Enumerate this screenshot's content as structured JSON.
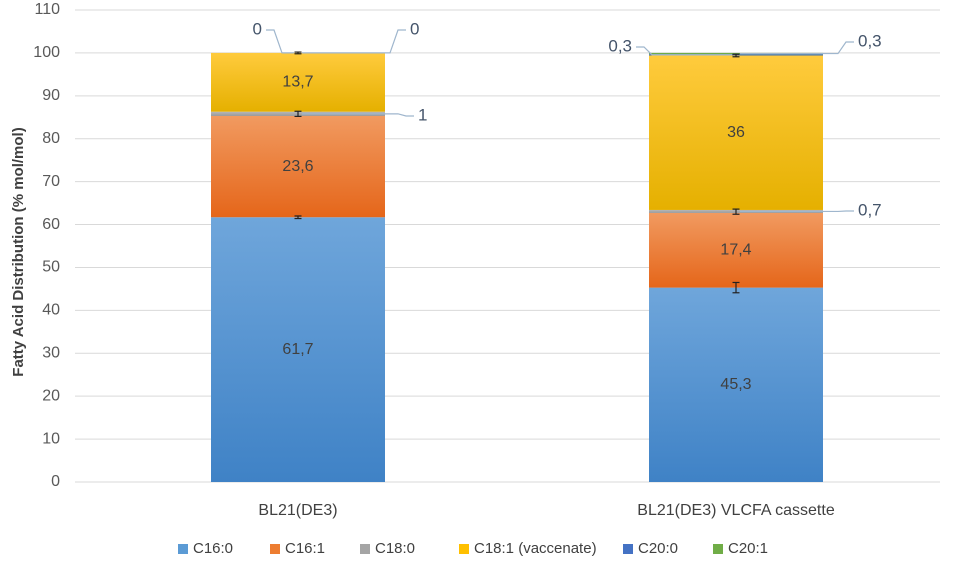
{
  "chart_data": {
    "type": "bar",
    "stacked": true,
    "ylabel": "Fatty Acid Distribution (% mol/mol)",
    "xlabel": "",
    "ylim": [
      0,
      110
    ],
    "yticks": [
      0,
      10,
      20,
      30,
      40,
      50,
      60,
      70,
      80,
      90,
      100,
      110
    ],
    "grid": true,
    "legend_position": "bottom",
    "categories": [
      "BL21(DE3)",
      "BL21(DE3) VLCFA cassette"
    ],
    "series": [
      {
        "name": "C16:0",
        "values": [
          61.7,
          45.3
        ],
        "labels": [
          "61,7",
          "45,3"
        ],
        "color": "#5b9bd5"
      },
      {
        "name": "C16:1",
        "values": [
          23.6,
          17.4
        ],
        "labels": [
          "23,6",
          "17,4"
        ],
        "color": "#ed7d31"
      },
      {
        "name": "C18:0",
        "values": [
          1,
          0.7
        ],
        "labels": [
          "1",
          "0,7"
        ],
        "color": "#a5a5a5"
      },
      {
        "name": "C18:1 (vaccenate)",
        "values": [
          13.7,
          36
        ],
        "labels": [
          "13,7",
          "36"
        ],
        "color": "#ffc000"
      },
      {
        "name": "C20:0",
        "values": [
          0,
          0.3
        ],
        "labels": [
          "0",
          "0,3"
        ],
        "color": "#4472c4"
      },
      {
        "name": "C20:1",
        "values": [
          0,
          0.3
        ],
        "labels": [
          "0",
          "0,3"
        ],
        "color": "#70ad47"
      }
    ]
  }
}
